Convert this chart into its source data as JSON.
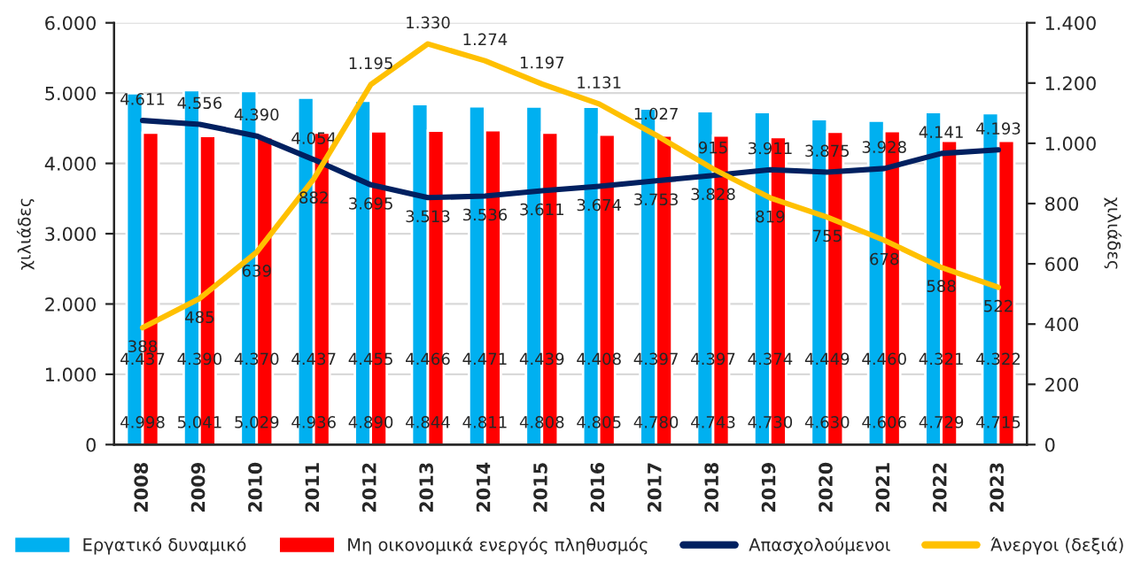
{
  "chart_data": {
    "type": "bar",
    "categories": [
      "2008",
      "2009",
      "2010",
      "2011",
      "2012",
      "2013",
      "2014",
      "2015",
      "2016",
      "2017",
      "2018",
      "2019",
      "2020",
      "2021",
      "2022",
      "2023"
    ],
    "series": [
      {
        "name": "Εργατικό δυναμικό",
        "color": "#00b0f0",
        "values": [
          4998,
          5041,
          5029,
          4936,
          4890,
          4844,
          4811,
          4808,
          4805,
          4780,
          4743,
          4730,
          4630,
          4606,
          4729,
          4715
        ],
        "value_labels": [
          "4.998",
          "5.041",
          "5.029",
          "4.936",
          "4.890",
          "4.844",
          "4.811",
          "4.808",
          "4.805",
          "4.780",
          "4.743",
          "4.730",
          "4.630",
          "4.606",
          "4.729",
          "4.715"
        ]
      },
      {
        "name": "Μη οικονομικά ενεργός πληθυσμός",
        "color": "#ff0000",
        "values": [
          4437,
          4390,
          4370,
          4437,
          4455,
          4466,
          4471,
          4439,
          4408,
          4397,
          4397,
          4374,
          4449,
          4460,
          4321,
          4322
        ],
        "value_labels": [
          "4.437",
          "4.390",
          "4.370",
          "4.437",
          "4.455",
          "4.466",
          "4.471",
          "4.439",
          "4.408",
          "4.397",
          "4.397",
          "4.374",
          "4.449",
          "4.460",
          "4.321",
          "4.322"
        ]
      },
      {
        "name": "Απασχολούμενοι",
        "type": "line",
        "color": "#002060",
        "values": [
          4611,
          4556,
          4390,
          4054,
          3695,
          3513,
          3536,
          3611,
          3674,
          3753,
          3828,
          3911,
          3875,
          3928,
          4141,
          4193
        ],
        "value_labels": [
          "4.611",
          "4.556",
          "4.390",
          "4.054",
          "3.695",
          "3.513",
          "3.536",
          "3.611",
          "3.674",
          "3.753",
          "3.828",
          "3.911",
          "3.875",
          "3.928",
          "4.141",
          "4.193"
        ]
      },
      {
        "name": "Άνεργοι (δεξιά)",
        "type": "line",
        "axis": "y2",
        "color": "#ffc000",
        "values": [
          388,
          485,
          639,
          882,
          1195,
          1330,
          1274,
          1197,
          1131,
          1027,
          915,
          819,
          755,
          678,
          588,
          522
        ],
        "value_labels": [
          "388",
          "485",
          "639",
          "882",
          "1.195",
          "1.330",
          "1.274",
          "1.197",
          "1.131",
          "1.027",
          "915",
          "819",
          "755",
          "678",
          "588",
          "522"
        ]
      }
    ],
    "ylabel": "χιλιάδες",
    "y2label": "χιλιάδες",
    "ylim": [
      0,
      6000
    ],
    "yticks": [
      {
        "value": 0,
        "label": "0"
      },
      {
        "value": 1000,
        "label": "1.000"
      },
      {
        "value": 2000,
        "label": "2.000"
      },
      {
        "value": 3000,
        "label": "3.000"
      },
      {
        "value": 4000,
        "label": "4.000"
      },
      {
        "value": 5000,
        "label": "5.000"
      },
      {
        "value": 6000,
        "label": "6.000"
      }
    ],
    "y2lim": [
      0,
      1400
    ],
    "y2ticks": [
      {
        "value": 0,
        "label": "0"
      },
      {
        "value": 200,
        "label": "200"
      },
      {
        "value": 400,
        "label": "400"
      },
      {
        "value": 600,
        "label": "600"
      },
      {
        "value": 800,
        "label": "800"
      },
      {
        "value": 1000,
        "label": "1.000"
      },
      {
        "value": 1200,
        "label": "1.200"
      },
      {
        "value": 1400,
        "label": "1.400"
      }
    ],
    "grid": "y",
    "legend": "bottom",
    "line_style": "solid",
    "marker": "none"
  }
}
